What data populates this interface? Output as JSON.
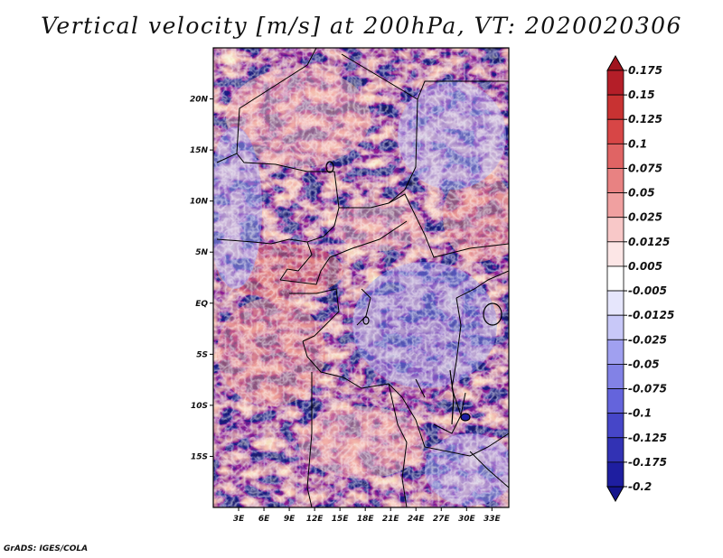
{
  "title": "Vertical velocity [m/s] at 200hPa, VT: 2020020306",
  "footer": "GrADS: IGES/COLA",
  "map": {
    "lon_range": [
      0,
      35
    ],
    "lat_range": [
      -20,
      25
    ],
    "lat_ticks": [
      {
        "value": 20,
        "label": "20N"
      },
      {
        "value": 15,
        "label": "15N"
      },
      {
        "value": 10,
        "label": "10N"
      },
      {
        "value": 5,
        "label": "5N"
      },
      {
        "value": 0,
        "label": "EQ"
      },
      {
        "value": -5,
        "label": "5S"
      },
      {
        "value": -10,
        "label": "10S"
      },
      {
        "value": -15,
        "label": "15S"
      }
    ],
    "lon_ticks": [
      {
        "value": 3,
        "label": "3E"
      },
      {
        "value": 6,
        "label": "6E"
      },
      {
        "value": 9,
        "label": "9E"
      },
      {
        "value": 12,
        "label": "12E"
      },
      {
        "value": 15,
        "label": "15E"
      },
      {
        "value": 18,
        "label": "18E"
      },
      {
        "value": 21,
        "label": "21E"
      },
      {
        "value": 24,
        "label": "24E"
      },
      {
        "value": 27,
        "label": "27E"
      },
      {
        "value": 30,
        "label": "30E"
      },
      {
        "value": 33,
        "label": "33E"
      }
    ]
  },
  "colorbar": {
    "levels": [
      "0.175",
      "0.15",
      "0.125",
      "0.1",
      "0.075",
      "0.05",
      "0.025",
      "0.0125",
      "0.005",
      "-0.005",
      "-0.0125",
      "-0.025",
      "-0.05",
      "-0.075",
      "-0.1",
      "-0.125",
      "-0.175",
      "-0.2"
    ],
    "colors": [
      "#a0141e",
      "#b41e28",
      "#c83232",
      "#d74646",
      "#e06464",
      "#e88282",
      "#f0a0a0",
      "#f8c8c8",
      "#fce6e6",
      "#ffffff",
      "#e6e6fc",
      "#c8c8f8",
      "#a0a0f0",
      "#8282e6",
      "#6464dc",
      "#4646c8",
      "#3232b4",
      "#1e1ea0",
      "#14148c"
    ]
  }
}
